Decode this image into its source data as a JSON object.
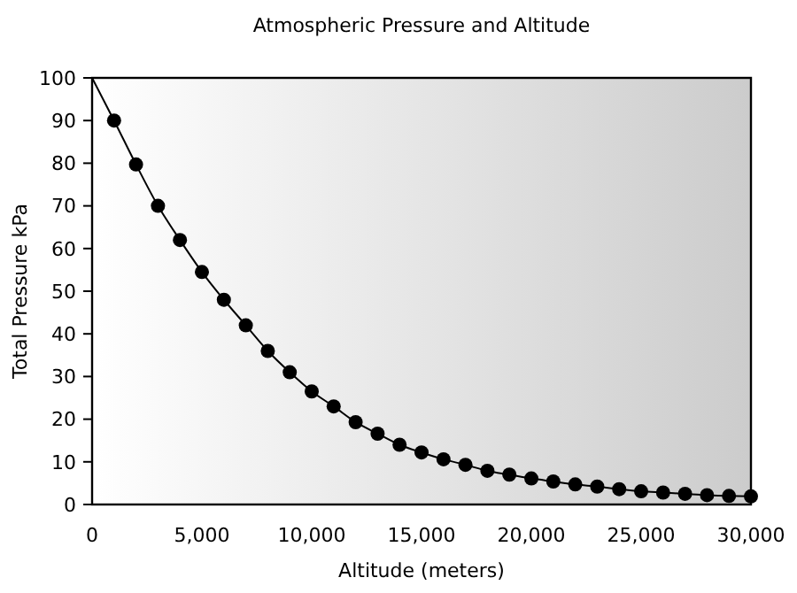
{
  "chart_data": {
    "type": "scatter",
    "title": "Atmospheric Pressure and Altitude",
    "xlabel": "Altitude (meters)",
    "ylabel": "Total Pressure kPa",
    "xlim": [
      0,
      30000
    ],
    "xticks": [
      {
        "value": 0,
        "label": "0"
      },
      {
        "value": 5000,
        "label": "5,000"
      },
      {
        "value": 10000,
        "label": "10,000"
      },
      {
        "value": 15000,
        "label": "15,000"
      },
      {
        "value": 20000,
        "label": "20,000"
      },
      {
        "value": 25000,
        "label": "25,000"
      },
      {
        "value": 30000,
        "label": "30,000"
      }
    ],
    "ylim": [
      0,
      100
    ],
    "yticks": [
      0,
      10,
      20,
      30,
      40,
      50,
      60,
      70,
      80,
      90,
      100
    ],
    "grid": false,
    "series": [
      {
        "type": "line",
        "marker": "none",
        "line_style": "solid",
        "color": "#000000",
        "x": [
          0,
          1000,
          2000,
          3000,
          4000,
          5000,
          6000,
          7000,
          8000,
          9000,
          10000,
          11000,
          12000,
          13000,
          14000,
          15000,
          16000,
          17000,
          18000,
          19000,
          20000,
          21000,
          22000,
          23000,
          24000,
          25000,
          26000,
          27000,
          28000,
          29000,
          30000
        ],
        "values": [
          100,
          90,
          79.7,
          70,
          62,
          54.5,
          48,
          42,
          36,
          31,
          26.5,
          23,
          19.3,
          16.6,
          14,
          12.2,
          10.6,
          9.3,
          7.9,
          7,
          6.1,
          5.4,
          4.7,
          4.2,
          3.6,
          3.1,
          2.8,
          2.5,
          2.2,
          2,
          1.9
        ]
      },
      {
        "marker": "circle",
        "color": "#000000",
        "x": [
          1000,
          2000,
          3000,
          4000,
          5000,
          6000,
          7000,
          8000,
          9000,
          10000,
          11000,
          12000,
          13000,
          14000,
          15000,
          16000,
          17000,
          18000,
          19000,
          20000,
          21000,
          22000,
          23000,
          24000,
          25000,
          26000,
          27000,
          28000,
          29000,
          30000
        ],
        "values": [
          90,
          79.7,
          70,
          62,
          54.5,
          48,
          42,
          36,
          31,
          26.5,
          23,
          19.3,
          16.6,
          14,
          12.2,
          10.6,
          9.3,
          7.9,
          7,
          6.1,
          5.4,
          4.7,
          4.2,
          3.6,
          3.1,
          2.8,
          2.5,
          2.2,
          2,
          1.9
        ]
      }
    ]
  }
}
